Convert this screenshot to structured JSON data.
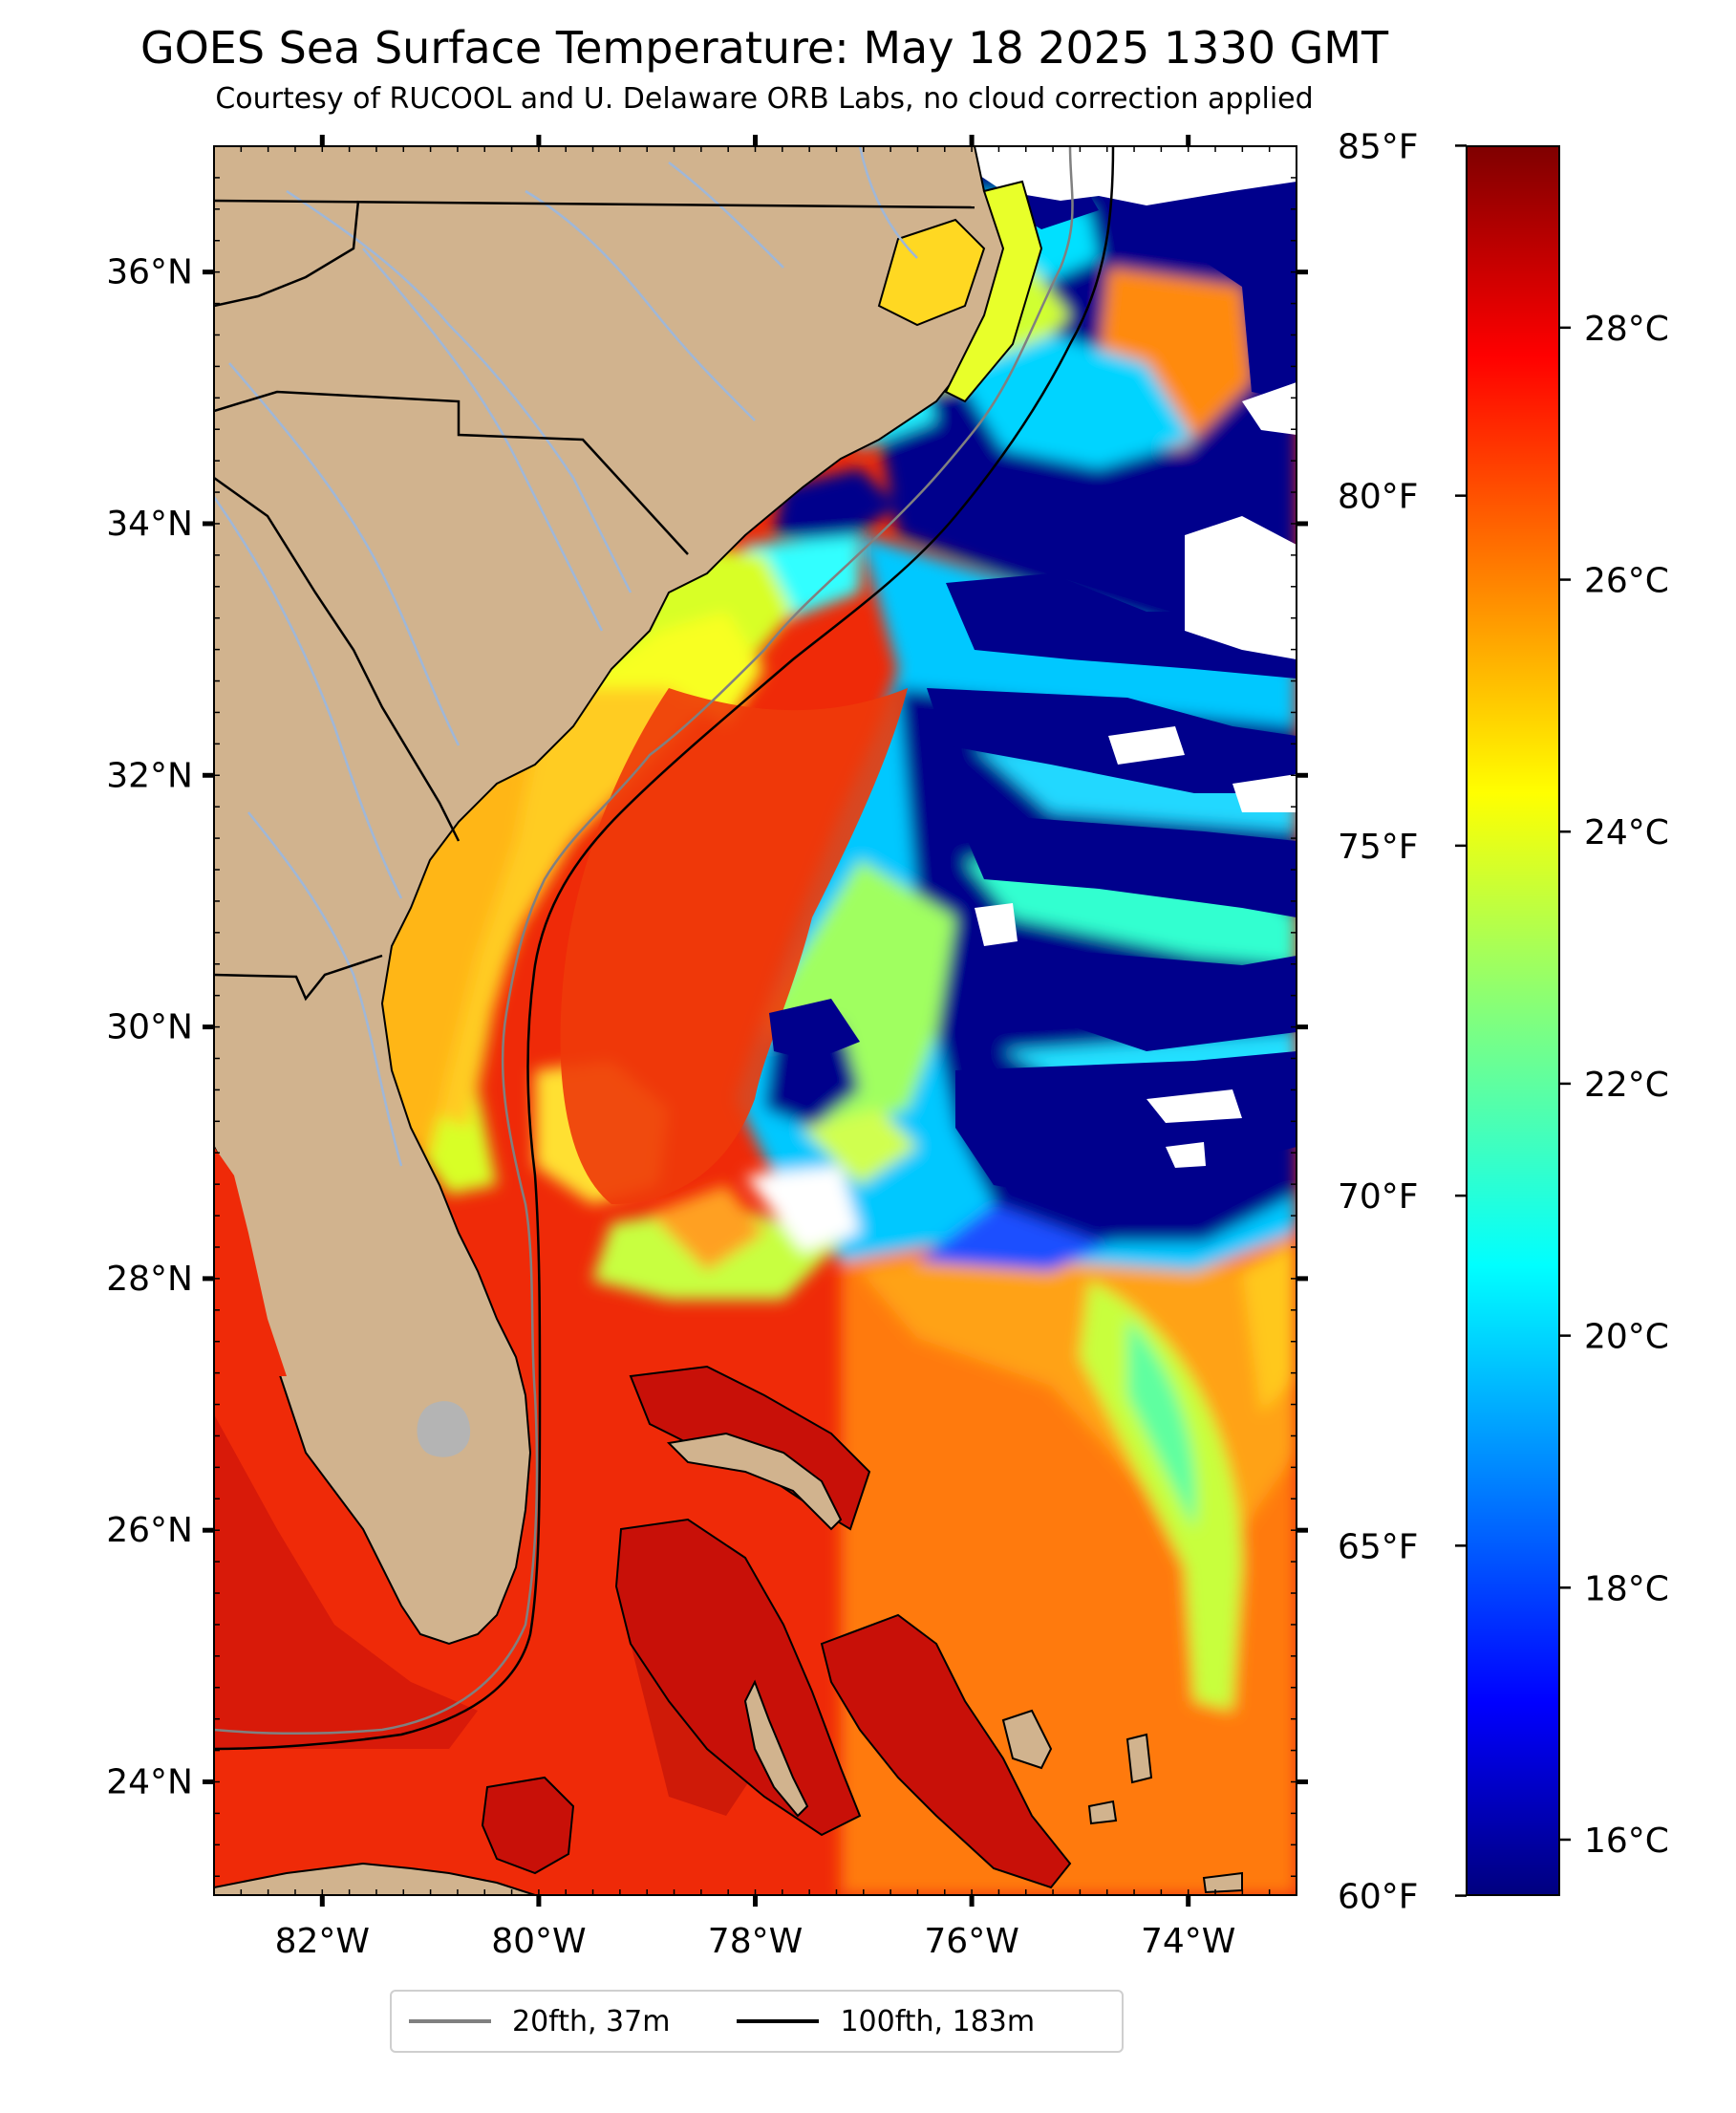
{
  "title": "GOES Sea Surface Temperature: May 18 2025 1330 GMT",
  "subtitle": "Courtesy of RUCOOL and U. Delaware ORB Labs, no cloud correction applied",
  "map": {
    "lon_range": [
      -83,
      -73
    ],
    "lat_range": [
      23.1,
      37.0
    ],
    "lon_ticks": [
      {
        "value": -82,
        "label": "82°W"
      },
      {
        "value": -80,
        "label": "80°W"
      },
      {
        "value": -78,
        "label": "78°W"
      },
      {
        "value": -76,
        "label": "76°W"
      },
      {
        "value": -74,
        "label": "74°W"
      }
    ],
    "lat_ticks": [
      {
        "value": 24,
        "label": "24°N"
      },
      {
        "value": 26,
        "label": "26°N"
      },
      {
        "value": 28,
        "label": "28°N"
      },
      {
        "value": 30,
        "label": "30°N"
      },
      {
        "value": 32,
        "label": "32°N"
      },
      {
        "value": 34,
        "label": "34°N"
      },
      {
        "value": 36,
        "label": "36°N"
      }
    ],
    "colors": {
      "land": "#d1b38e",
      "ocean_warm": "#ef2a08",
      "cloud": "#ffffff",
      "cold": "#00008c",
      "isobath_20fth": "#808080",
      "isobath_100fth": "#000000",
      "rivers": "#9fb7d8",
      "lake": "#b4b4b4"
    }
  },
  "colorbar": {
    "colormap": "jet",
    "celsius_range": [
      15.56,
      29.44
    ],
    "celsius_ticks": [
      {
        "value": 16,
        "label": "16°C"
      },
      {
        "value": 18,
        "label": "18°C"
      },
      {
        "value": 20,
        "label": "20°C"
      },
      {
        "value": 22,
        "label": "22°C"
      },
      {
        "value": 24,
        "label": "24°C"
      },
      {
        "value": 26,
        "label": "26°C"
      },
      {
        "value": 28,
        "label": "28°C"
      }
    ],
    "fahrenheit_ticks": [
      {
        "value": 60,
        "label": "60°F"
      },
      {
        "value": 65,
        "label": "65°F"
      },
      {
        "value": 70,
        "label": "70°F"
      },
      {
        "value": 75,
        "label": "75°F"
      },
      {
        "value": 80,
        "label": "80°F"
      },
      {
        "value": 85,
        "label": "85°F"
      }
    ]
  },
  "legend": {
    "items": [
      {
        "label": "20fth, 37m",
        "color": "#808080"
      },
      {
        "label": "100fth, 183m",
        "color": "#000000"
      }
    ]
  }
}
